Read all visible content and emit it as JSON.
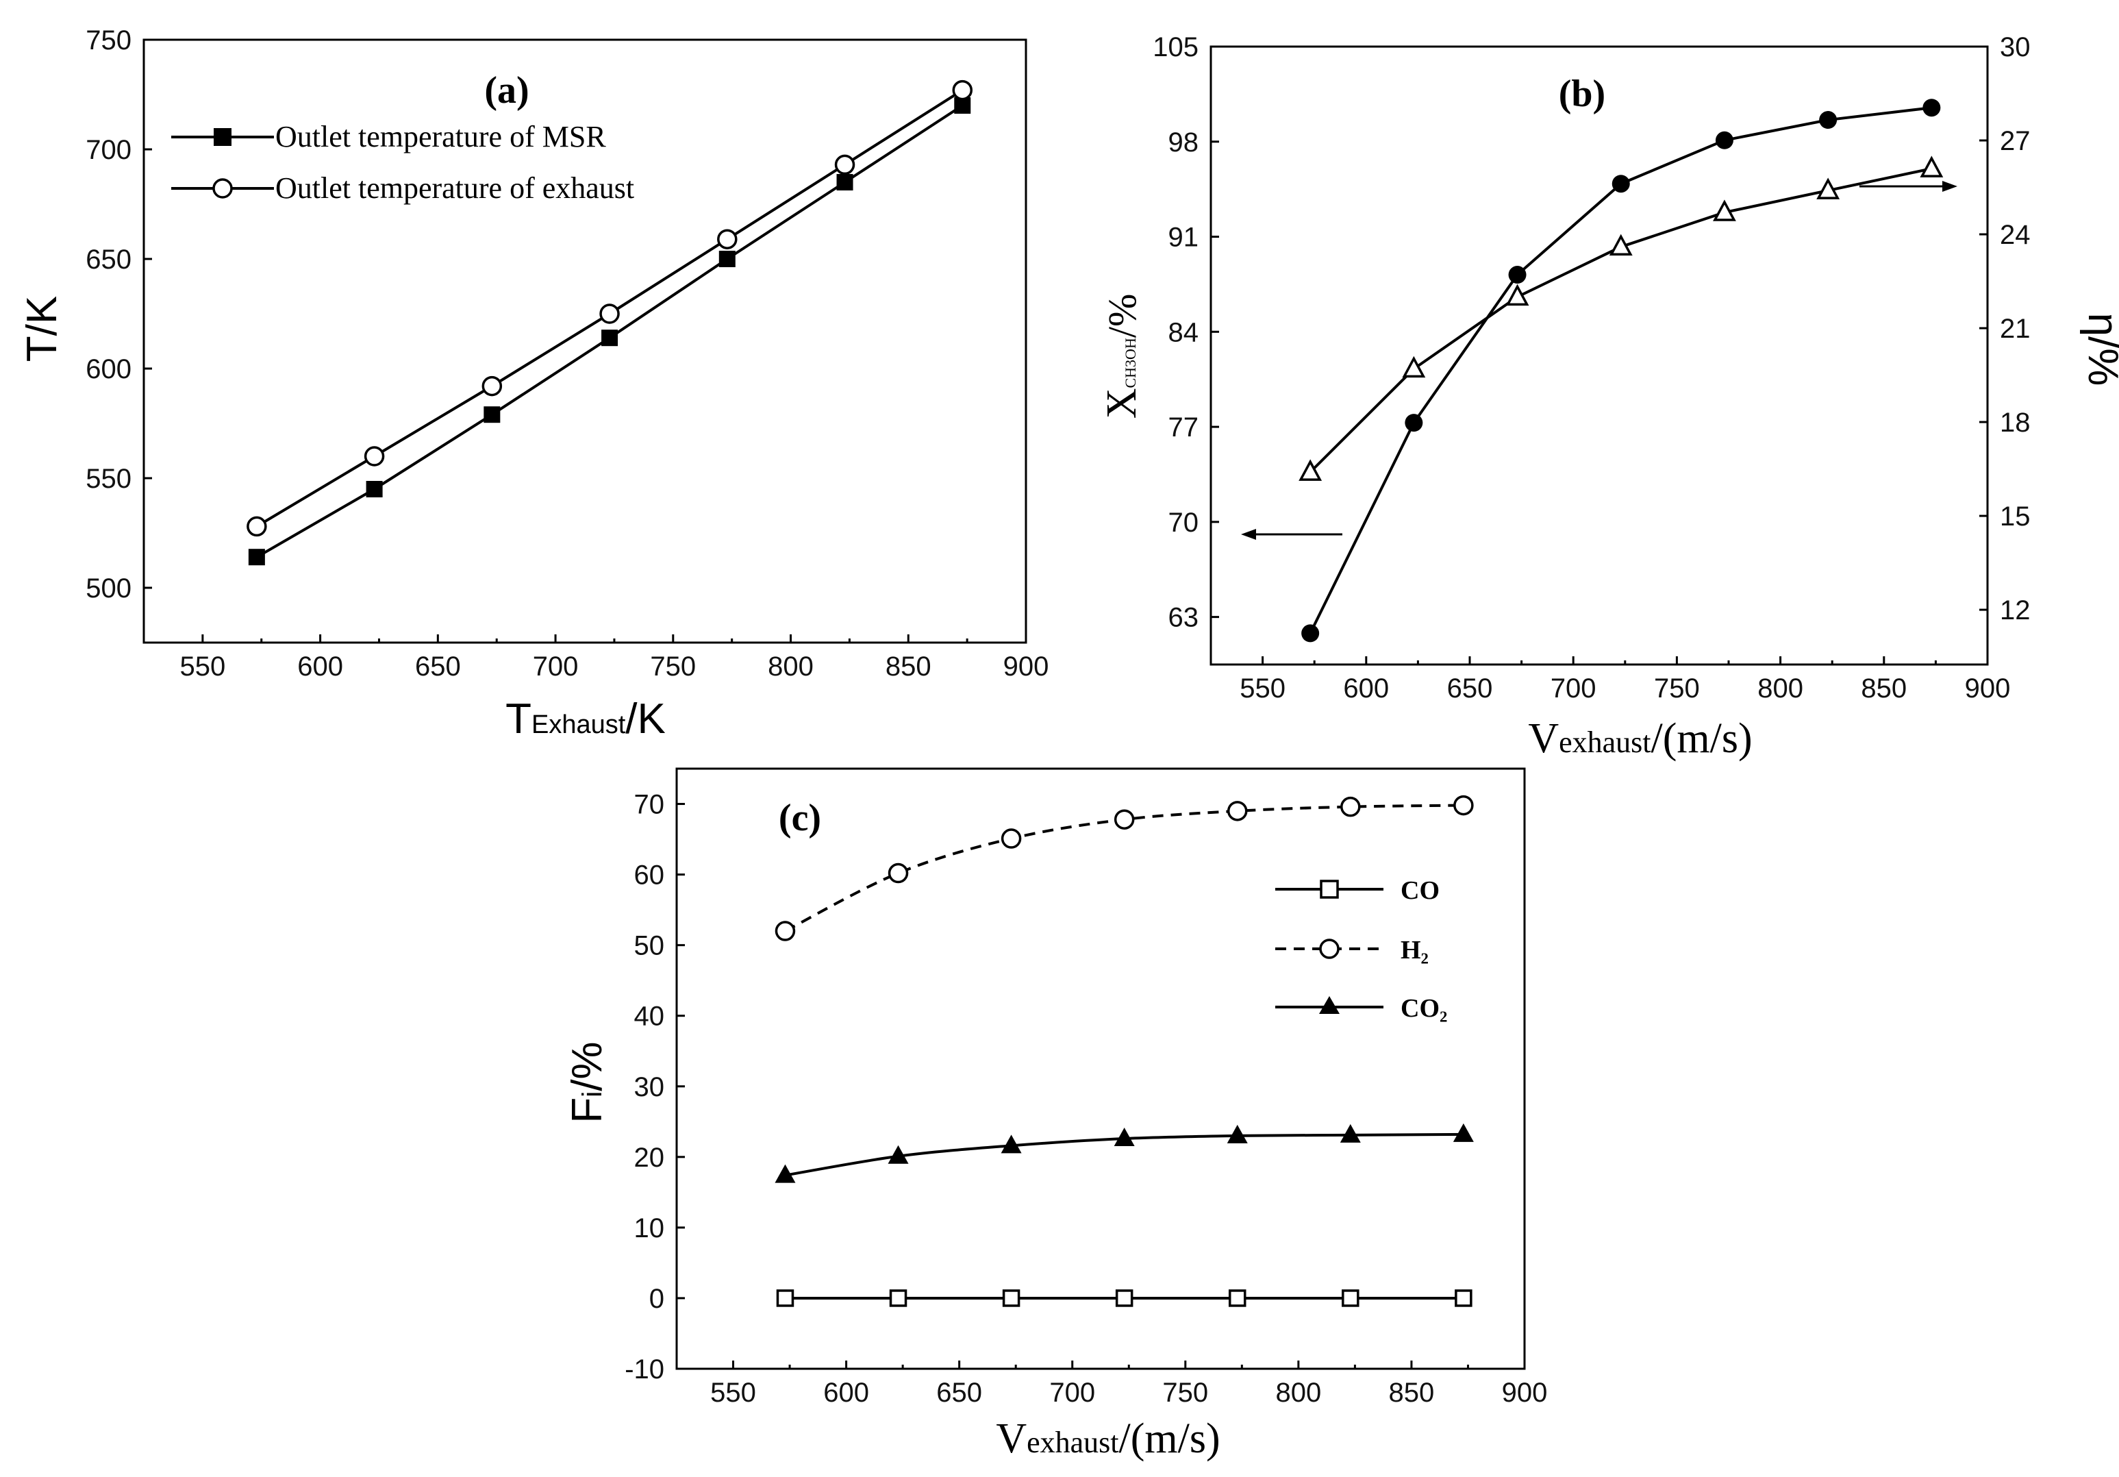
{
  "chart_data": [
    {
      "id": "a",
      "type": "line",
      "panel_label": "(a)",
      "xlabel_main": "T",
      "xlabel_sub": "Exhaust",
      "xlabel_suffix": "/K",
      "ylabel": "T/K",
      "xlim": [
        525,
        900
      ],
      "ylim": [
        475,
        750
      ],
      "xticks": [
        550,
        600,
        650,
        700,
        750,
        800,
        850,
        900
      ],
      "yticks": [
        500,
        550,
        600,
        650,
        700,
        750
      ],
      "legend_position": "top-left",
      "series": [
        {
          "name": "Outlet temperature of MSR",
          "marker": "filled-square",
          "line": "solid",
          "x": [
            573,
            623,
            673,
            723,
            773,
            823,
            873
          ],
          "y": [
            514,
            545,
            579,
            614,
            650,
            685,
            720
          ]
        },
        {
          "name": "Outlet temperature of exhaust",
          "marker": "open-circle",
          "line": "solid",
          "x": [
            573,
            623,
            673,
            723,
            773,
            823,
            873
          ],
          "y": [
            528,
            560,
            592,
            625,
            659,
            693,
            727
          ]
        }
      ]
    },
    {
      "id": "b",
      "type": "line",
      "panel_label": "(b)",
      "xlabel_main": "V",
      "xlabel_sub": "exhaust",
      "xlabel_suffix": "/(m/s)",
      "ylabel_left_main": "X",
      "ylabel_left_sub": "CH3OH",
      "ylabel_left_suffix": "/%",
      "ylabel_right": "η/%",
      "xlim": [
        525,
        900
      ],
      "ylim_left": [
        59.5,
        105
      ],
      "ylim_right": [
        10.25,
        30
      ],
      "xticks": [
        550,
        600,
        650,
        700,
        750,
        800,
        850,
        900
      ],
      "yticks_left": [
        63,
        70,
        77,
        84,
        91,
        98,
        105
      ],
      "yticks_right": [
        12,
        15,
        18,
        21,
        24,
        27,
        30
      ],
      "series": [
        {
          "name": "X_CH3OH",
          "axis": "left",
          "marker": "filled-circle",
          "line": "solid",
          "x": [
            573,
            623,
            673,
            723,
            773,
            823,
            873
          ],
          "y": [
            61.8,
            77.3,
            88.2,
            94.9,
            98.1,
            99.6,
            100.5
          ]
        },
        {
          "name": "η",
          "axis": "right",
          "marker": "open-triangle",
          "line": "solid",
          "x": [
            573,
            623,
            673,
            723,
            773,
            823,
            873
          ],
          "y": [
            16.4,
            19.7,
            22.0,
            23.6,
            24.7,
            25.4,
            26.1
          ]
        }
      ]
    },
    {
      "id": "c",
      "type": "line",
      "panel_label": "(c)",
      "xlabel_main": "V",
      "xlabel_sub": "exhaust",
      "xlabel_suffix": "/(m/s)",
      "ylabel_main": "F",
      "ylabel_sub": "i",
      "ylabel_suffix": "/%",
      "xlim": [
        525,
        900
      ],
      "ylim": [
        -10,
        75
      ],
      "xticks": [
        550,
        600,
        650,
        700,
        750,
        800,
        850,
        900
      ],
      "yticks": [
        -10,
        0,
        10,
        20,
        30,
        40,
        50,
        60,
        70
      ],
      "legend_position": "right",
      "series": [
        {
          "name": "CO",
          "marker": "open-square",
          "line": "solid",
          "x": [
            573,
            623,
            673,
            723,
            773,
            823,
            873
          ],
          "y": [
            0,
            0,
            0,
            0,
            0,
            0,
            0
          ]
        },
        {
          "name": "H₂",
          "marker": "open-circle",
          "line": "dashed",
          "x": [
            573,
            623,
            673,
            723,
            773,
            823,
            873
          ],
          "y": [
            52.0,
            60.2,
            65.1,
            67.8,
            69.0,
            69.6,
            69.8
          ]
        },
        {
          "name": "CO₂",
          "marker": "filled-triangle",
          "line": "solid",
          "x": [
            573,
            623,
            673,
            723,
            773,
            823,
            873
          ],
          "y": [
            17.4,
            20.1,
            21.6,
            22.6,
            23.0,
            23.1,
            23.2
          ]
        }
      ]
    }
  ]
}
